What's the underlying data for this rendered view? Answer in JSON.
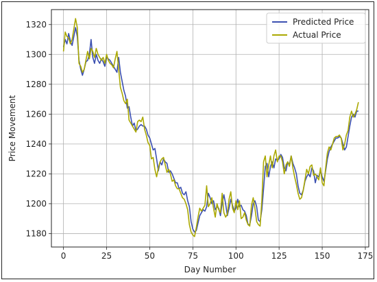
{
  "chart_data": {
    "type": "line",
    "xlabel": "Day Number",
    "ylabel": "Price Movement",
    "xlim": [
      -7,
      177
    ],
    "ylim": [
      1171,
      1330
    ],
    "xticks": [
      0,
      25,
      50,
      75,
      100,
      125,
      150,
      175
    ],
    "yticks": [
      1180,
      1200,
      1220,
      1240,
      1260,
      1280,
      1300,
      1320
    ],
    "grid": true,
    "legend_position": "top-right",
    "x": [
      0,
      1,
      2,
      3,
      4,
      5,
      6,
      7,
      8,
      9,
      10,
      11,
      12,
      13,
      14,
      15,
      16,
      17,
      18,
      19,
      20,
      21,
      22,
      23,
      24,
      25,
      26,
      27,
      28,
      29,
      30,
      31,
      32,
      33,
      34,
      35,
      36,
      37,
      38,
      39,
      40,
      41,
      42,
      43,
      44,
      45,
      46,
      47,
      48,
      49,
      50,
      51,
      52,
      53,
      54,
      55,
      56,
      57,
      58,
      59,
      60,
      61,
      62,
      63,
      64,
      65,
      66,
      67,
      68,
      69,
      70,
      71,
      72,
      73,
      74,
      75,
      76,
      77,
      78,
      79,
      80,
      81,
      82,
      83,
      84,
      85,
      86,
      87,
      88,
      89,
      90,
      91,
      92,
      93,
      94,
      95,
      96,
      97,
      98,
      99,
      100,
      101,
      102,
      103,
      104,
      105,
      106,
      107,
      108,
      109,
      110,
      111,
      112,
      113,
      114,
      115,
      116,
      117,
      118,
      119,
      120,
      121,
      122,
      123,
      124,
      125,
      126,
      127,
      128,
      129,
      130,
      131,
      132,
      133,
      134,
      135,
      136,
      137,
      138,
      139,
      140,
      141,
      142,
      143,
      144,
      145,
      146,
      147,
      148,
      149,
      150,
      151,
      152,
      153,
      154,
      155,
      156,
      157,
      158,
      159,
      160,
      161,
      162,
      163,
      164,
      165,
      166,
      167,
      168,
      169,
      170,
      171
    ],
    "series": [
      {
        "name": "Predicted Price",
        "color": "#3b4fb0",
        "values": [
          1305,
          1310,
          1307,
          1314,
          1309,
          1306,
          1312,
          1318,
          1312,
          1296,
          1290,
          1286,
          1290,
          1295,
          1296,
          1300,
          1310,
          1298,
          1294,
          1300,
          1296,
          1294,
          1297,
          1295,
          1292,
          1298,
          1297,
          1296,
          1294,
          1292,
          1290,
          1288,
          1298,
          1288,
          1282,
          1276,
          1272,
          1264,
          1265,
          1258,
          1252,
          1254,
          1249,
          1250,
          1252,
          1253,
          1252,
          1252,
          1250,
          1246,
          1244,
          1240,
          1236,
          1237,
          1230,
          1222,
          1228,
          1226,
          1230,
          1228,
          1227,
          1221,
          1222,
          1220,
          1217,
          1214,
          1214,
          1210,
          1211,
          1207,
          1206,
          1208,
          1202,
          1198,
          1188,
          1183,
          1181,
          1182,
          1187,
          1192,
          1194,
          1196,
          1195,
          1198,
          1207,
          1204,
          1200,
          1202,
          1196,
          1198,
          1197,
          1192,
          1200,
          1206,
          1200,
          1192,
          1197,
          1203,
          1199,
          1195,
          1197,
          1203,
          1198,
          1199,
          1196,
          1195,
          1192,
          1186,
          1186,
          1192,
          1200,
          1202,
          1198,
          1189,
          1188,
          1196,
          1210,
          1225,
          1227,
          1218,
          1225,
          1228,
          1224,
          1230,
          1229,
          1230,
          1233,
          1231,
          1224,
          1222,
          1228,
          1226,
          1232,
          1227,
          1224,
          1220,
          1212,
          1207,
          1206,
          1209,
          1215,
          1218,
          1220,
          1218,
          1224,
          1222,
          1214,
          1219,
          1218,
          1222,
          1218,
          1215,
          1222,
          1230,
          1235,
          1238,
          1240,
          1242,
          1244,
          1244,
          1245,
          1244,
          1240,
          1236,
          1238,
          1245,
          1252,
          1258,
          1260,
          1258,
          1262,
          1262
        ]
      },
      {
        "name": "Actual Price",
        "color": "#aaa800",
        "values": [
          1302,
          1315,
          1312,
          1311,
          1307,
          1310,
          1317,
          1324,
          1318,
          1294,
          1292,
          1288,
          1290,
          1296,
          1302,
          1297,
          1304,
          1302,
          1298,
          1304,
          1300,
          1298,
          1296,
          1298,
          1294,
          1300,
          1296,
          1294,
          1293,
          1291,
          1297,
          1302,
          1290,
          1278,
          1274,
          1269,
          1267,
          1270,
          1256,
          1254,
          1252,
          1250,
          1248,
          1255,
          1256,
          1255,
          1258,
          1250,
          1246,
          1241,
          1239,
          1230,
          1231,
          1223,
          1218,
          1224,
          1228,
          1230,
          1231,
          1226,
          1221,
          1223,
          1220,
          1215,
          1216,
          1212,
          1210,
          1210,
          1207,
          1204,
          1203,
          1200,
          1196,
          1186,
          1181,
          1179,
          1178,
          1184,
          1191,
          1197,
          1195,
          1197,
          1199,
          1212,
          1198,
          1200,
          1204,
          1197,
          1191,
          1200,
          1196,
          1194,
          1207,
          1194,
          1191,
          1193,
          1203,
          1208,
          1197,
          1194,
          1202,
          1196,
          1202,
          1190,
          1191,
          1194,
          1189,
          1186,
          1185,
          1199,
          1204,
          1197,
          1188,
          1186,
          1185,
          1202,
          1228,
          1232,
          1218,
          1226,
          1232,
          1224,
          1232,
          1236,
          1228,
          1232,
          1232,
          1228,
          1220,
          1226,
          1228,
          1225,
          1232,
          1224,
          1218,
          1213,
          1207,
          1203,
          1204,
          1209,
          1216,
          1223,
          1220,
          1225,
          1226,
          1219,
          1220,
          1218,
          1216,
          1224,
          1214,
          1212,
          1224,
          1234,
          1238,
          1236,
          1240,
          1244,
          1245,
          1245,
          1246,
          1244,
          1236,
          1240,
          1246,
          1249,
          1258,
          1262,
          1258,
          1260,
          1263,
          1268
        ]
      }
    ]
  }
}
